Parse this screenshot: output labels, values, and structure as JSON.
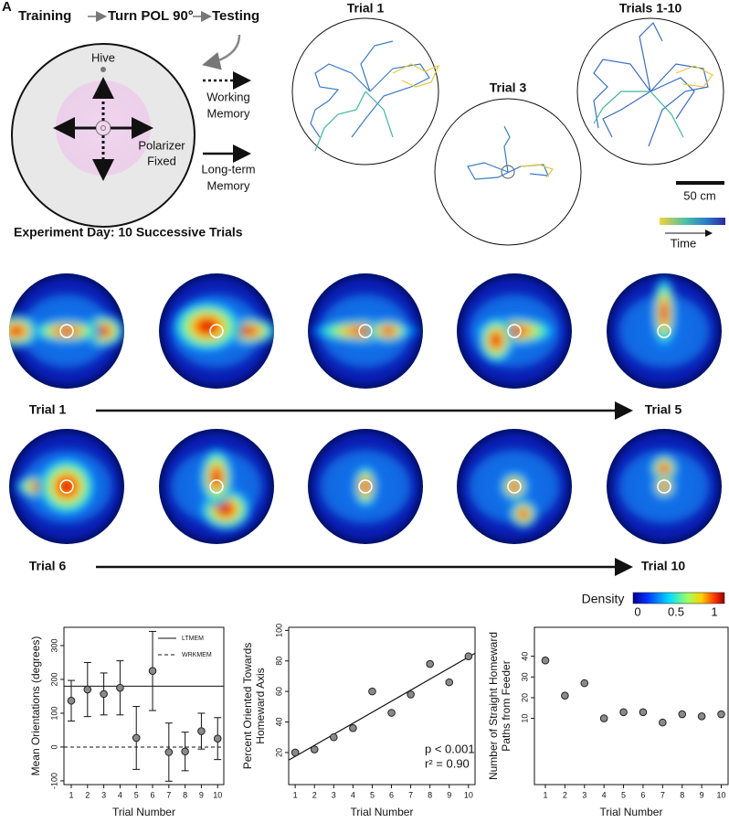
{
  "panel_a": {
    "flow": [
      "Training",
      "Turn POL 90°",
      "Testing"
    ],
    "hive": "Hive",
    "polarizer": [
      "Polarizer",
      "Fixed"
    ],
    "working": [
      "Working",
      "Memory"
    ],
    "longterm": [
      "Long-term",
      "Memory"
    ],
    "caption": "Experiment Day: 10 Successive Trials"
  },
  "panel_b": {
    "titles": [
      "Trial 1",
      "Trial 3",
      "Trials 1-10"
    ],
    "scale": "50 cm",
    "time": "Time"
  },
  "heatmaps": {
    "labels": [
      "Trial 1",
      "Trial 5",
      "Trial 6",
      "Trial 10"
    ],
    "colorbar_title": "Density",
    "colorbar_ticks": [
      0,
      0.5,
      1
    ]
  },
  "chart_data": [
    {
      "type": "scatter",
      "xlabel": "Trial Number",
      "ylabel": [
        "Mean Orientations (degrees)"
      ],
      "x": [
        1,
        2,
        3,
        4,
        5,
        6,
        7,
        8,
        9,
        10
      ],
      "values": [
        137,
        170,
        157,
        175,
        27,
        225,
        -15,
        -13,
        47,
        25
      ],
      "errors": [
        60,
        80,
        62,
        80,
        93,
        117,
        86,
        57,
        53,
        62
      ],
      "xlim": [
        0.55,
        10.38
      ],
      "ylim": [
        -111,
        354
      ],
      "xticks": [
        1,
        2,
        3,
        4,
        5,
        6,
        7,
        8,
        9,
        10
      ],
      "yticks": [
        -100,
        0,
        100,
        200,
        300
      ],
      "reference_lines": [
        {
          "name": "LTMEM",
          "value": 180,
          "style": "solid"
        },
        {
          "name": "WRKMEM",
          "value": 0,
          "style": "dashed"
        }
      ]
    },
    {
      "type": "scatter",
      "xlabel": "Trial Number",
      "ylabel": [
        "Percent Oriented Towards",
        "Homeward Axis"
      ],
      "x": [
        1,
        2,
        3,
        4,
        5,
        6,
        7,
        8,
        9,
        10
      ],
      "values": [
        20,
        22,
        30,
        36,
        60,
        46,
        58,
        78,
        66,
        83
      ],
      "xlim": [
        0.66,
        10.34
      ],
      "ylim": [
        -1,
        102
      ],
      "xticks": [
        1,
        2,
        3,
        4,
        5,
        6,
        7,
        8,
        9,
        10
      ],
      "yticks": [
        20,
        40,
        60,
        80,
        100
      ],
      "fit": {
        "x": [
          0.66,
          10.34
        ],
        "y": [
          15,
          85
        ]
      },
      "annotations": [
        "p < 0.001",
        "r² = 0.90"
      ]
    },
    {
      "type": "scatter",
      "xlabel": "Trial Number",
      "ylabel": [
        "Number of Straight Homeward",
        "Paths from Feeder"
      ],
      "x": [
        1,
        2,
        3,
        4,
        5,
        6,
        7,
        8,
        9,
        10
      ],
      "values": [
        38,
        21,
        27,
        10,
        13,
        13,
        8,
        12,
        11,
        12
      ],
      "xlim": [
        0.44,
        10.35
      ],
      "ylim": [
        -22,
        54
      ],
      "xticks": [
        1,
        2,
        3,
        4,
        5,
        6,
        7,
        8,
        9,
        10
      ],
      "yticks": [
        10,
        20,
        30,
        40
      ]
    }
  ]
}
